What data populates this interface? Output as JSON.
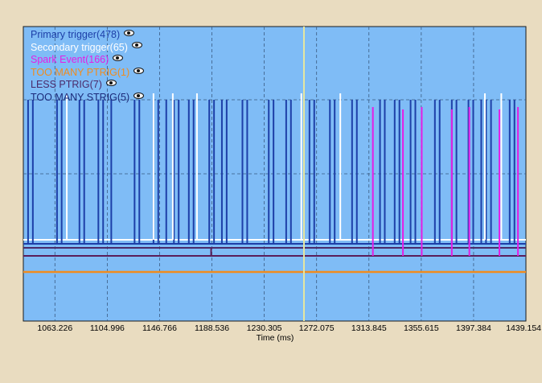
{
  "legend": [
    {
      "label": "Primary trigger(478)",
      "color": "#1d3fa8",
      "icon": "eye-icon"
    },
    {
      "label": "Secondary trigger(65)",
      "color": "#ffffff",
      "icon": "eye-icon"
    },
    {
      "label": "Spark Event(166)",
      "color": "#e51ee5",
      "icon": "eye-icon"
    },
    {
      "label": "TOO MANY PTRIG(1)",
      "color": "#f08c1e",
      "icon": "eye-icon"
    },
    {
      "label": "LESS PTRIG(7)",
      "color": "#4a2a6a",
      "icon": "eye-icon"
    },
    {
      "label": "TOO MANY STRIG(5)",
      "color": "#1b2a7a",
      "icon": "eye-icon"
    }
  ],
  "colors": {
    "plot_background": "#7fbcf6",
    "primary": "#1d3fa8",
    "secondary": "#ffffff",
    "spark": "#e51ee5",
    "too_many_ptrig": "#f08c1e",
    "less_ptrig": "#4a2a6a",
    "too_many_strig": "#5a1e5a",
    "cursor": "#e6e6a0"
  },
  "chart_data": {
    "type": "line",
    "xlabel": "Time (ms)",
    "xlim": [
      1038.0,
      1439.154
    ],
    "ticks": [
      "1063.226",
      "1104.996",
      "1146.766",
      "1188.536",
      "1230.305",
      "1272.075",
      "1313.845",
      "1355.615",
      "1397.384",
      "1439.154"
    ],
    "tick_values": [
      1063.226,
      1104.996,
      1146.766,
      1188.536,
      1230.305,
      1272.075,
      1313.845,
      1355.615,
      1397.384,
      1439.154
    ],
    "grid": true,
    "cursor_x": 1262.0,
    "series": [
      {
        "name": "Primary trigger(478)",
        "color": "#1d3fa8",
        "x": [
          1041.8,
          1045.6,
          1064.9,
          1068.6,
          1082.8,
          1086.6,
          1097.9,
          1101.7,
          1108.2,
          1126.8,
          1130.6,
          1141.9,
          1145.7,
          1152.1,
          1158.2,
          1162.0,
          1170.1,
          1173.9,
          1186.4,
          1190.2,
          1196.5,
          1200.3,
          1212.9,
          1216.7,
          1233.9,
          1237.7,
          1247.8,
          1251.6,
          1266.4,
          1270.2,
          1282.7,
          1286.5,
          1300.4,
          1304.2,
          1322.7,
          1326.5,
          1334.4,
          1338.2,
          1347.1,
          1350.9,
          1366.5,
          1370.3,
          1380.0,
          1383.7,
          1393.3,
          1397.1,
          1403.5,
          1407.3,
          1411.3,
          1426.2,
          1430.0
        ],
        "level": 1.0,
        "baseline": 0.0
      },
      {
        "name": "Secondary trigger(65)",
        "color": "#ffffff",
        "x": [
          1072.7,
          1141.9,
          1157.3,
          1176.6,
          1259.9,
          1291.0,
          1406.4,
          1419.5
        ],
        "level": 1.0,
        "baseline": 0.0
      },
      {
        "name": "Spark Event(166)",
        "color": "#e51ee5",
        "x": [
          1317.0,
          1341.0,
          1356.0,
          1380.0,
          1394.0,
          1418.0,
          1432.8
        ],
        "level": 1.0,
        "baseline": 0.0
      },
      {
        "name": "TOO MANY PTRIG(1)",
        "color": "#f08c1e",
        "level": 0.0
      },
      {
        "name": "LESS PTRIG(7)",
        "color": "#4a2a6a",
        "level": 0.0
      },
      {
        "name": "TOO MANY STRIG(5)",
        "color": "#1b2a7a",
        "level": 0.0
      }
    ]
  }
}
